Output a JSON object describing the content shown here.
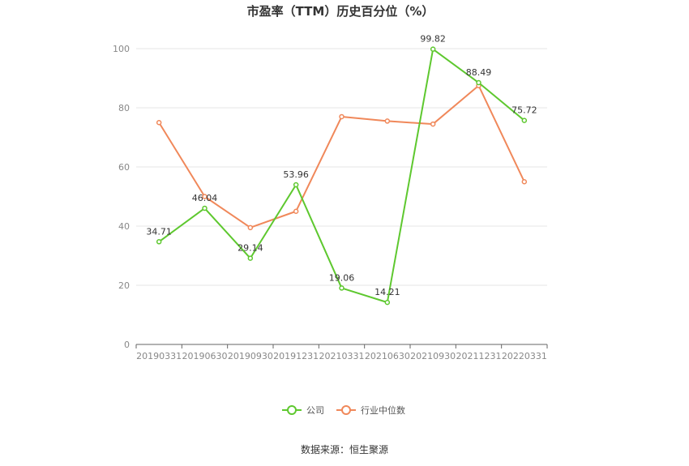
{
  "chart_data": {
    "type": "line",
    "title": "市盈率（TTM）历史百分位（%）",
    "categories": [
      "20190331",
      "20190630",
      "20190930",
      "20191231",
      "20210331",
      "20210630",
      "20210930",
      "20211231",
      "20220331"
    ],
    "ylim": [
      0,
      100
    ],
    "yticks": [
      0,
      20,
      40,
      60,
      80,
      100
    ],
    "grid": true,
    "legend_position": "bottom",
    "series": [
      {
        "name": "公司",
        "color": "#5ec82f",
        "values": [
          34.71,
          46.04,
          29.14,
          53.96,
          19.06,
          14.21,
          99.82,
          88.49,
          75.72
        ],
        "labels": [
          "34.71",
          "46.04",
          "29.14",
          "53.96",
          "19.06",
          "14.21",
          "99.82",
          "88.49",
          "75.72"
        ]
      },
      {
        "name": "行业中位数",
        "color": "#f0885a",
        "values": [
          75,
          50,
          39.5,
          45,
          77,
          75.5,
          74.5,
          87.5,
          55
        ]
      }
    ]
  },
  "source_text": "数据来源：恒生聚源"
}
